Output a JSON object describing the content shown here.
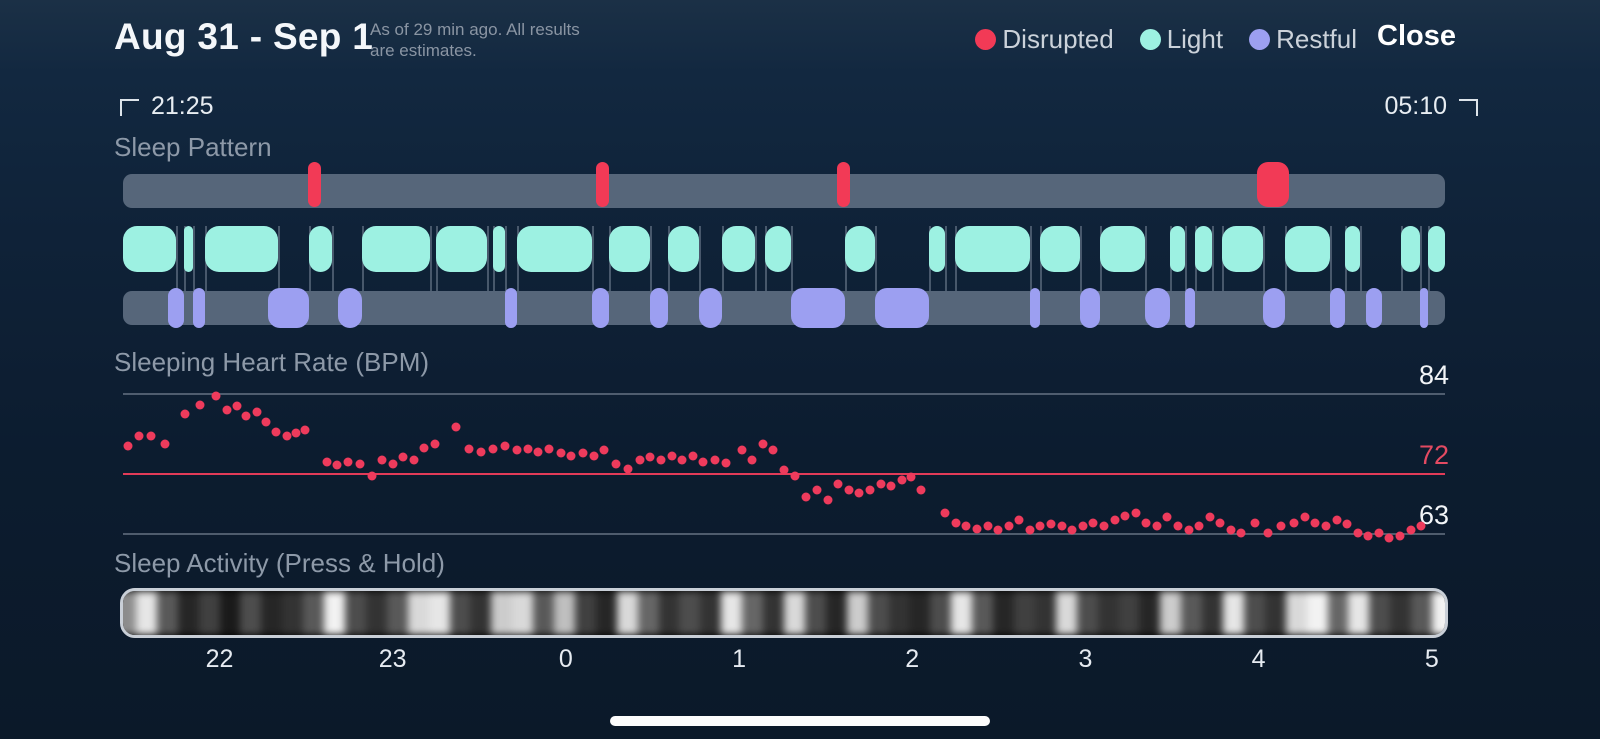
{
  "header": {
    "title": "Aug 31 - Sep 1",
    "subtitle_line1": "As of 29 min ago. All results",
    "subtitle_line2": "are estimates.",
    "close_label": "Close",
    "legend": [
      {
        "label": "Disrupted",
        "color": "#f23a56"
      },
      {
        "label": "Light",
        "color": "#9df1e2"
      },
      {
        "label": "Restful",
        "color": "#9c9ff1"
      }
    ]
  },
  "time_range": {
    "start": "21:25",
    "end": "05:10"
  },
  "sections": {
    "sleep_pattern": "Sleep Pattern",
    "heart_rate": "Sleeping Heart Rate (BPM)",
    "activity": "Sleep Activity (Press & Hold)"
  },
  "colors": {
    "disrupted": "#f23a56",
    "light": "#9df1e2",
    "restful": "#9c9ff1",
    "track_bg": "#56667a",
    "hr_dot": "#ee3b5c",
    "hr_line_red": "#e23b58"
  },
  "x_axis": {
    "hours": [
      "22",
      "23",
      "0",
      "1",
      "2",
      "3",
      "4",
      "5"
    ],
    "positions": [
      0.073,
      0.204,
      0.335,
      0.466,
      0.597,
      0.728,
      0.859,
      0.99
    ]
  },
  "chart_data": [
    {
      "type": "table",
      "name": "sleep_pattern",
      "title": "Sleep Pattern",
      "legend": [
        "Disrupted",
        "Light",
        "Restful"
      ],
      "x_range": [
        "21:25",
        "05:10"
      ],
      "disrupted": [
        [
          0.14,
          0.15
        ],
        [
          0.358,
          0.368
        ],
        [
          0.54,
          0.55
        ],
        [
          0.858,
          0.882
        ]
      ],
      "light": [
        [
          0.0,
          0.04
        ],
        [
          0.046,
          0.053
        ],
        [
          0.062,
          0.117
        ],
        [
          0.141,
          0.158
        ],
        [
          0.181,
          0.232
        ],
        [
          0.237,
          0.275
        ],
        [
          0.28,
          0.289
        ],
        [
          0.298,
          0.355
        ],
        [
          0.368,
          0.399
        ],
        [
          0.412,
          0.436
        ],
        [
          0.453,
          0.478
        ],
        [
          0.486,
          0.505
        ],
        [
          0.546,
          0.569
        ],
        [
          0.61,
          0.622
        ],
        [
          0.629,
          0.686
        ],
        [
          0.694,
          0.724
        ],
        [
          0.739,
          0.773
        ],
        [
          0.792,
          0.803
        ],
        [
          0.811,
          0.824
        ],
        [
          0.831,
          0.862
        ],
        [
          0.879,
          0.913
        ],
        [
          0.924,
          0.936
        ],
        [
          0.967,
          0.981
        ],
        [
          0.987,
          1.0
        ]
      ],
      "restful": [
        [
          0.034,
          0.046
        ],
        [
          0.053,
          0.062
        ],
        [
          0.11,
          0.141
        ],
        [
          0.163,
          0.181
        ],
        [
          0.289,
          0.298
        ],
        [
          0.355,
          0.368
        ],
        [
          0.399,
          0.412
        ],
        [
          0.436,
          0.453
        ],
        [
          0.505,
          0.546
        ],
        [
          0.569,
          0.61
        ],
        [
          0.686,
          0.694
        ],
        [
          0.724,
          0.739
        ],
        [
          0.773,
          0.792
        ],
        [
          0.803,
          0.811
        ],
        [
          0.862,
          0.879
        ],
        [
          0.913,
          0.924
        ],
        [
          0.94,
          0.952
        ],
        [
          0.981,
          0.987
        ]
      ]
    },
    {
      "type": "scatter",
      "name": "sleeping_heart_rate",
      "title": "Sleeping Heart Rate (BPM)",
      "ylim": [
        62,
        84
      ],
      "gridlines": [
        {
          "value": 84,
          "red": false
        },
        {
          "value": 72,
          "red": true
        },
        {
          "value": 63,
          "red": false
        }
      ],
      "points": [
        [
          0.004,
          76
        ],
        [
          0.012,
          77.6
        ],
        [
          0.021,
          77.6
        ],
        [
          0.032,
          76.4
        ],
        [
          0.047,
          80.8
        ],
        [
          0.058,
          82.2
        ],
        [
          0.07,
          83.6
        ],
        [
          0.079,
          81.4
        ],
        [
          0.086,
          82.0
        ],
        [
          0.093,
          80.6
        ],
        [
          0.101,
          81.2
        ],
        [
          0.108,
          79.6
        ],
        [
          0.116,
          78.2
        ],
        [
          0.124,
          77.6
        ],
        [
          0.131,
          78.0
        ],
        [
          0.138,
          78.4
        ],
        [
          0.154,
          73.6
        ],
        [
          0.162,
          73.2
        ],
        [
          0.17,
          73.6
        ],
        [
          0.179,
          73.4
        ],
        [
          0.188,
          71.6
        ],
        [
          0.196,
          73.9
        ],
        [
          0.204,
          73.4
        ],
        [
          0.212,
          74.4
        ],
        [
          0.22,
          74.0
        ],
        [
          0.228,
          75.8
        ],
        [
          0.236,
          76.4
        ],
        [
          0.252,
          78.9
        ],
        [
          0.262,
          75.6
        ],
        [
          0.271,
          75.1
        ],
        [
          0.28,
          75.6
        ],
        [
          0.289,
          76.0
        ],
        [
          0.298,
          75.4
        ],
        [
          0.306,
          75.6
        ],
        [
          0.314,
          75.1
        ],
        [
          0.322,
          75.6
        ],
        [
          0.331,
          75.0
        ],
        [
          0.339,
          74.6
        ],
        [
          0.348,
          75.0
        ],
        [
          0.356,
          74.5
        ],
        [
          0.364,
          75.4
        ],
        [
          0.373,
          73.4
        ],
        [
          0.382,
          72.6
        ],
        [
          0.391,
          73.9
        ],
        [
          0.399,
          74.4
        ],
        [
          0.407,
          74.0
        ],
        [
          0.415,
          74.5
        ],
        [
          0.423,
          74.0
        ],
        [
          0.431,
          74.5
        ],
        [
          0.439,
          73.6
        ],
        [
          0.448,
          74.0
        ],
        [
          0.456,
          73.5
        ],
        [
          0.468,
          75.4
        ],
        [
          0.476,
          73.9
        ],
        [
          0.484,
          76.4
        ],
        [
          0.492,
          75.5
        ],
        [
          0.5,
          72.4
        ],
        [
          0.508,
          71.5
        ],
        [
          0.517,
          68.4
        ],
        [
          0.525,
          69.4
        ],
        [
          0.533,
          68.0
        ],
        [
          0.541,
          70.4
        ],
        [
          0.549,
          69.4
        ],
        [
          0.557,
          69.0
        ],
        [
          0.565,
          69.5
        ],
        [
          0.573,
          70.4
        ],
        [
          0.581,
          70.0
        ],
        [
          0.589,
          71.0
        ],
        [
          0.596,
          71.4
        ],
        [
          0.604,
          69.4
        ],
        [
          0.622,
          66.0
        ],
        [
          0.63,
          64.5
        ],
        [
          0.638,
          64.0
        ],
        [
          0.646,
          63.6
        ],
        [
          0.654,
          64.0
        ],
        [
          0.662,
          63.5
        ],
        [
          0.67,
          64.0
        ],
        [
          0.678,
          65.0
        ],
        [
          0.686,
          63.5
        ],
        [
          0.694,
          64.0
        ],
        [
          0.702,
          64.4
        ],
        [
          0.71,
          64.0
        ],
        [
          0.718,
          63.5
        ],
        [
          0.726,
          64.0
        ],
        [
          0.734,
          64.5
        ],
        [
          0.742,
          64.0
        ],
        [
          0.75,
          65.0
        ],
        [
          0.758,
          65.5
        ],
        [
          0.766,
          66.0
        ],
        [
          0.774,
          64.5
        ],
        [
          0.782,
          64.0
        ],
        [
          0.79,
          65.4
        ],
        [
          0.798,
          64.0
        ],
        [
          0.806,
          63.5
        ],
        [
          0.814,
          64.0
        ],
        [
          0.822,
          65.4
        ],
        [
          0.83,
          64.5
        ],
        [
          0.838,
          63.5
        ],
        [
          0.846,
          63.0
        ],
        [
          0.856,
          64.5
        ],
        [
          0.866,
          63.0
        ],
        [
          0.876,
          64.0
        ],
        [
          0.886,
          64.5
        ],
        [
          0.894,
          65.4
        ],
        [
          0.902,
          64.5
        ],
        [
          0.91,
          64.0
        ],
        [
          0.918,
          65.0
        ],
        [
          0.926,
          64.4
        ],
        [
          0.934,
          63.0
        ],
        [
          0.942,
          62.6
        ],
        [
          0.95,
          63.0
        ],
        [
          0.958,
          62.2
        ],
        [
          0.966,
          62.6
        ],
        [
          0.974,
          63.4
        ],
        [
          0.982,
          64.0
        ]
      ]
    },
    {
      "type": "heatmap",
      "name": "sleep_activity",
      "title": "Sleep Activity (Press & Hold)",
      "intensities": [
        0.55,
        0.9,
        0.35,
        0.15,
        0.25,
        0.1,
        0.3,
        0.15,
        0.2,
        0.35,
        0.95,
        0.3,
        0.2,
        0.35,
        0.85,
        0.9,
        0.3,
        0.2,
        0.8,
        0.85,
        0.35,
        0.75,
        0.25,
        0.15,
        0.85,
        0.4,
        0.2,
        0.3,
        0.2,
        0.9,
        0.4,
        0.2,
        0.85,
        0.3,
        0.15,
        0.8,
        0.3,
        0.2,
        0.15,
        0.3,
        0.9,
        0.35,
        0.15,
        0.25,
        0.2,
        0.85,
        0.3,
        0.2,
        0.25,
        0.15,
        0.8,
        0.35,
        0.2,
        0.9,
        0.3,
        0.2,
        0.85,
        0.95,
        0.4,
        0.9,
        0.3,
        0.2,
        0.35,
        0.95
      ]
    }
  ]
}
